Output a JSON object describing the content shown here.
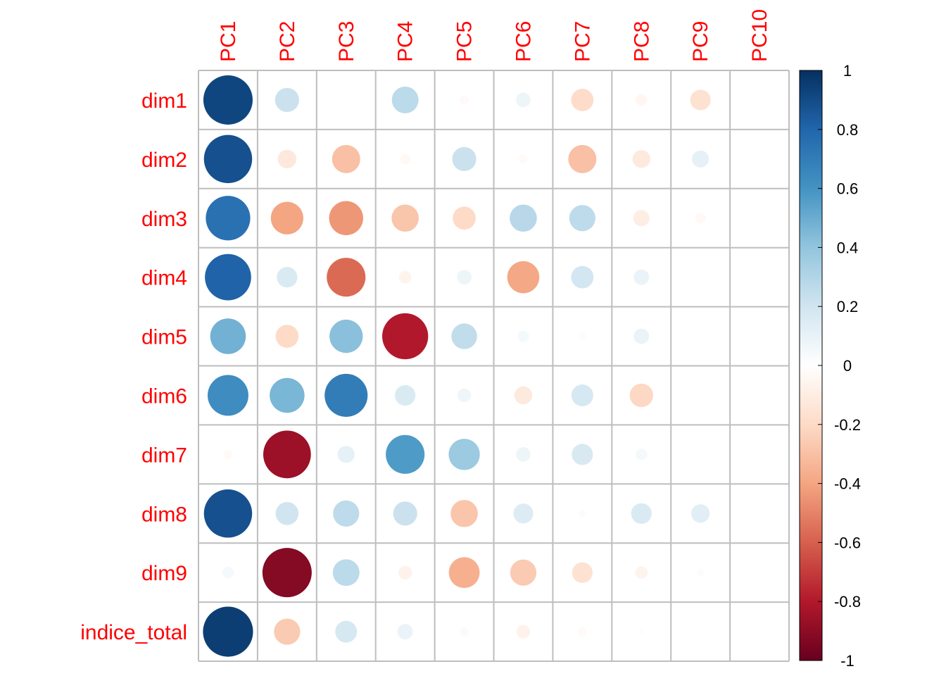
{
  "chart_data": {
    "type": "heatmap",
    "title": "",
    "xlabel": "",
    "ylabel": "",
    "columns": [
      "PC1",
      "PC2",
      "PC3",
      "PC4",
      "PC5",
      "PC6",
      "PC7",
      "PC8",
      "PC9",
      "PC10"
    ],
    "rows": [
      "dim1",
      "dim2",
      "dim3",
      "dim4",
      "dim5",
      "dim6",
      "dim7",
      "dim8",
      "dim9",
      "indice_total"
    ],
    "values": [
      [
        0.92,
        0.22,
        0.0,
        0.27,
        -0.03,
        0.08,
        -0.19,
        -0.05,
        -0.16,
        0.0
      ],
      [
        0.88,
        -0.13,
        -0.3,
        -0.04,
        0.22,
        -0.03,
        -0.3,
        -0.12,
        0.11,
        0.0
      ],
      [
        0.75,
        -0.4,
        -0.44,
        -0.28,
        -0.2,
        0.28,
        0.26,
        -0.1,
        -0.04,
        0.0
      ],
      [
        0.81,
        0.16,
        -0.57,
        -0.06,
        0.08,
        -0.39,
        0.19,
        0.09,
        0.0,
        0.0
      ],
      [
        0.48,
        -0.2,
        0.42,
        -0.8,
        0.25,
        0.05,
        -0.02,
        0.09,
        0.0,
        0.0
      ],
      [
        0.63,
        0.46,
        0.7,
        0.16,
        0.07,
        -0.12,
        0.18,
        -0.21,
        0.0,
        0.0
      ],
      [
        -0.03,
        -0.86,
        0.11,
        0.57,
        0.37,
        0.08,
        0.17,
        0.05,
        0.0,
        0.0
      ],
      [
        0.88,
        0.2,
        0.26,
        0.22,
        -0.28,
        0.15,
        -0.02,
        0.16,
        0.13,
        0.0
      ],
      [
        0.05,
        -0.92,
        0.27,
        -0.07,
        -0.36,
        -0.26,
        -0.16,
        -0.06,
        -0.02,
        0.0
      ],
      [
        0.95,
        -0.26,
        0.18,
        0.09,
        0.03,
        -0.07,
        -0.03,
        -0.01,
        0.0,
        0.0
      ]
    ],
    "colorbar": {
      "min": -1,
      "max": 1,
      "ticks": [
        "1",
        "0.8",
        "0.6",
        "0.4",
        "0.2",
        "0",
        "-0.2",
        "-0.4",
        "-0.6",
        "-0.8",
        "-1"
      ],
      "tick_values": [
        1,
        0.8,
        0.6,
        0.4,
        0.2,
        0,
        -0.2,
        -0.4,
        -0.6,
        -0.8,
        -1
      ]
    },
    "colors": {
      "scale": [
        "#67001F",
        "#B2182B",
        "#D6604D",
        "#F4A582",
        "#FDDBC7",
        "#FFFFFF",
        "#D1E5F0",
        "#92C5DE",
        "#4393C3",
        "#2166AC",
        "#053061"
      ],
      "label_color": "#FF0000",
      "grid_color": "#BEBEBE"
    }
  }
}
